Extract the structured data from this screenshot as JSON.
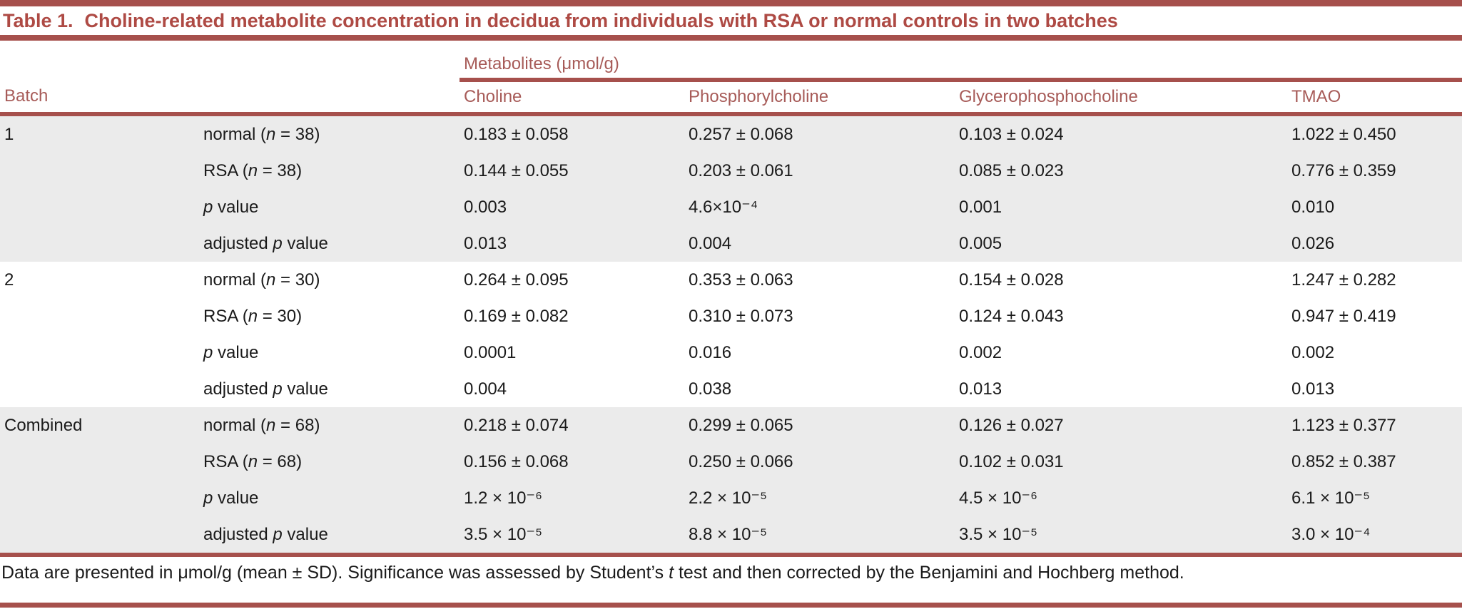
{
  "title": {
    "label": "Table 1.",
    "text": "Choline-related metabolite concentration in decidua from individuals with RSA or normal controls in two batches"
  },
  "colors": {
    "maroon_rule": "#A6504C",
    "title_text": "#AE4A44",
    "header_text": "#A75B58",
    "stripe_background": "#EBEBEB",
    "body_text": "#1A1A1A"
  },
  "table": {
    "spanner": "Metabolites (μmol/g)",
    "columns": [
      "Batch",
      "",
      "Choline",
      "Phosphorylcholine",
      "Glycerophosphocholine",
      "TMAO"
    ],
    "groups": [
      {
        "batch": "1",
        "shaded": true,
        "rows": [
          {
            "label": "normal (*n* = 38)",
            "values": [
              "0.183 ± 0.058",
              "0.257 ± 0.068",
              "0.103 ± 0.024",
              "1.022 ± 0.450"
            ]
          },
          {
            "label": "RSA (*n* = 38)",
            "values": [
              "0.144 ± 0.055",
              "0.203 ± 0.061",
              "0.085 ± 0.023",
              "0.776 ± 0.359"
            ]
          },
          {
            "label": "*p* value",
            "values": [
              "0.003",
              "4.6×10⁻⁴",
              "0.001",
              "0.010"
            ]
          },
          {
            "label": "adjusted *p* value",
            "values": [
              "0.013",
              "0.004",
              "0.005",
              "0.026"
            ]
          }
        ]
      },
      {
        "batch": "2",
        "shaded": false,
        "rows": [
          {
            "label": "normal (*n* = 30)",
            "values": [
              "0.264 ± 0.095",
              "0.353 ± 0.063",
              "0.154 ± 0.028",
              "1.247 ± 0.282"
            ]
          },
          {
            "label": "RSA (*n* = 30)",
            "values": [
              "0.169 ± 0.082",
              "0.310 ± 0.073",
              "0.124 ± 0.043",
              "0.947 ± 0.419"
            ]
          },
          {
            "label": "*p* value",
            "values": [
              "0.0001",
              "0.016",
              "0.002",
              "0.002"
            ]
          },
          {
            "label": "adjusted *p* value",
            "values": [
              "0.004",
              "0.038",
              "0.013",
              "0.013"
            ]
          }
        ]
      },
      {
        "batch": "Combined",
        "shaded": true,
        "rows": [
          {
            "label": "normal (*n* = 68)",
            "values": [
              "0.218 ± 0.074",
              "0.299 ± 0.065",
              "0.126 ± 0.027",
              "1.123 ± 0.377"
            ]
          },
          {
            "label": "RSA (*n* = 68)",
            "values": [
              "0.156 ± 0.068",
              "0.250 ± 0.066",
              "0.102 ± 0.031",
              "0.852 ± 0.387"
            ]
          },
          {
            "label": "*p* value",
            "values": [
              "1.2 × 10⁻⁶",
              "2.2 × 10⁻⁵",
              "4.5 × 10⁻⁶",
              "6.1 × 10⁻⁵"
            ]
          },
          {
            "label": "adjusted *p* value",
            "values": [
              "3.5 × 10⁻⁵",
              "8.8 × 10⁻⁵",
              "3.5 × 10⁻⁵",
              "3.0 × 10⁻⁴"
            ]
          }
        ]
      }
    ]
  },
  "footnote": "Data are presented in μmol/g (mean ± SD). Significance was assessed by Student’s *t* test and then corrected by the Benjamini and Hochberg method."
}
